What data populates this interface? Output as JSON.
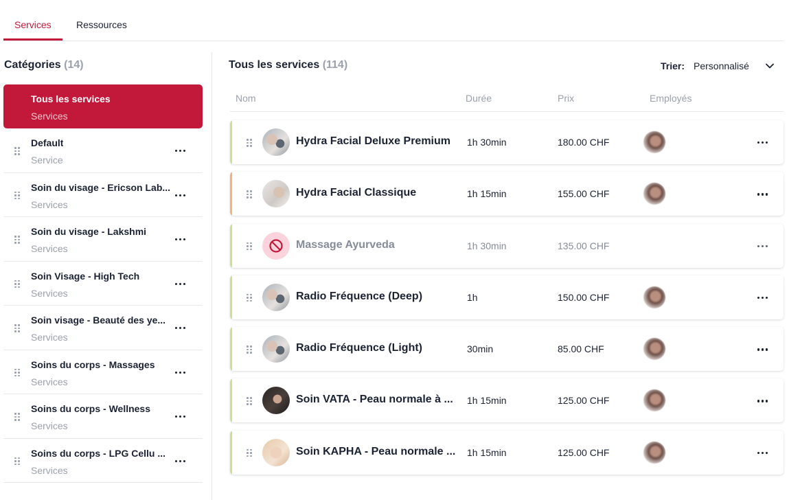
{
  "tabs": [
    {
      "label": "Services",
      "active": true
    },
    {
      "label": "Ressources",
      "active": false
    }
  ],
  "categories": {
    "title": "Catégories",
    "count": "(14)",
    "items": [
      {
        "name": "Tous les services",
        "sub": "Services",
        "active": true
      },
      {
        "name": "Default",
        "sub": "Service"
      },
      {
        "name": "Soin du visage - Ericson Lab...",
        "sub": "Services"
      },
      {
        "name": "Soin du visage - Lakshmi",
        "sub": "Services"
      },
      {
        "name": "Soin Visage - High Tech",
        "sub": "Services"
      },
      {
        "name": "Soin visage - Beauté des ye...",
        "sub": "Services"
      },
      {
        "name": "Soins du corps - Massages",
        "sub": "Services"
      },
      {
        "name": "Soins du corps - Wellness",
        "sub": "Services"
      },
      {
        "name": "Soins du corps - LPG Cellu ...",
        "sub": "Services"
      }
    ]
  },
  "services": {
    "title": "Tous les services",
    "count": "(114)",
    "sort_label": "Trier:",
    "sort_value": "Personnalisé",
    "columns": {
      "name": "Nom",
      "duration": "Durée",
      "price": "Prix",
      "employees": "Employés"
    },
    "rows": [
      {
        "name": "Hydra Facial Deluxe Premium",
        "duration": "1h 30min",
        "price": "180.00 CHF",
        "accent": "#c7e38c",
        "thumb": "facial",
        "employee": true
      },
      {
        "name": "Hydra Facial Classique",
        "duration": "1h 15min",
        "price": "155.00 CHF",
        "accent": "#f6b27a",
        "thumb": "facial-light",
        "employee": true
      },
      {
        "name": "Massage Ayurveda",
        "duration": "1h 30min",
        "price": "135.00 CHF",
        "accent": "#c7e38c",
        "thumb": "disabled",
        "employee": false,
        "disabled": true
      },
      {
        "name": "Radio Fréquence (Deep)",
        "duration": "1h",
        "price": "150.00 CHF",
        "accent": "#c7e38c",
        "thumb": "facial",
        "employee": true
      },
      {
        "name": "Radio Fréquence (Light)",
        "duration": "30min",
        "price": "85.00 CHF",
        "accent": "#c7e38c",
        "thumb": "facial",
        "employee": true
      },
      {
        "name": "Soin VATA - Peau normale à ...",
        "duration": "1h 15min",
        "price": "125.00 CHF",
        "accent": "#c7e38c",
        "thumb": "portrait-dark",
        "employee": true
      },
      {
        "name": "Soin KAPHA - Peau normale ...",
        "duration": "1h 15min",
        "price": "125.00 CHF",
        "accent": "#c7e38c",
        "thumb": "portrait-light",
        "employee": true
      }
    ]
  },
  "colors": {
    "brand": "#c2183a",
    "accent_green": "#c7e38c",
    "accent_orange": "#f6b27a",
    "muted": "#9aa1ad"
  }
}
